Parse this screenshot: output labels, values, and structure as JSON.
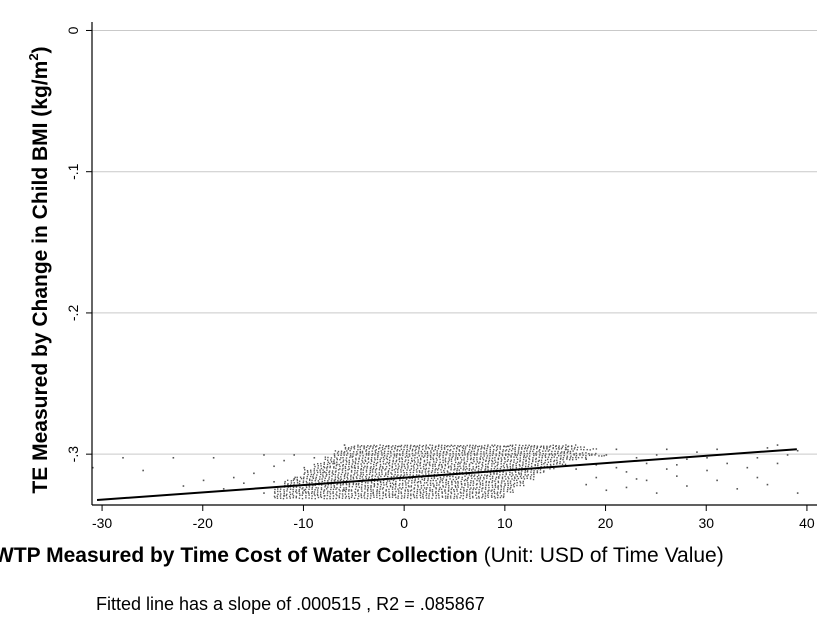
{
  "chart_data": {
    "type": "scatter",
    "title": "",
    "xlabel_bold": "WTP Measured by Time Cost of Water Collection",
    "xlabel_normal": " (Unit: USD of Time Value)",
    "ylabel_main": "TE Measured by Change in Child BMI (kg/m",
    "ylabel_sup": "2",
    "ylabel_end": ")",
    "xlim": [
      -31,
      41
    ],
    "ylim": [
      -0.336,
      0.006
    ],
    "xticks": [
      -30,
      -20,
      -10,
      0,
      10,
      20,
      30,
      40
    ],
    "xtick_labels": [
      "-30",
      "-20",
      "-10",
      "0",
      "10",
      "20",
      "30",
      "40"
    ],
    "yticks": [
      0,
      -0.1,
      -0.2,
      -0.3
    ],
    "ytick_labels": [
      "0",
      "-.1",
      "-.2",
      "-.3"
    ],
    "grid": "horizontal",
    "legend": "none",
    "point_color": "#555555",
    "line_color": "#000000",
    "fitted_line": {
      "x": [
        -30.5,
        39
      ],
      "y": [
        -0.3325,
        -0.2965
      ]
    },
    "scatter_bands": [
      {
        "y": -0.2935,
        "x_range": [
          -5,
          17
        ]
      },
      {
        "y": -0.2945,
        "x_range": [
          -6,
          18
        ]
      },
      {
        "y": -0.296,
        "x_range": [
          -6,
          19
        ]
      },
      {
        "y": -0.2975,
        "x_range": [
          -7,
          17
        ]
      },
      {
        "y": -0.299,
        "x_range": [
          -7,
          19
        ]
      },
      {
        "y": -0.3005,
        "x_range": [
          -7,
          20
        ]
      },
      {
        "y": -0.302,
        "x_range": [
          -8,
          18
        ]
      },
      {
        "y": -0.3035,
        "x_range": [
          -8,
          17
        ]
      },
      {
        "y": -0.305,
        "x_range": [
          -8,
          16
        ]
      },
      {
        "y": -0.3065,
        "x_range": [
          -9,
          16
        ]
      },
      {
        "y": -0.308,
        "x_range": [
          -9,
          15
        ]
      },
      {
        "y": -0.3095,
        "x_range": [
          -9,
          15
        ]
      },
      {
        "y": -0.311,
        "x_range": [
          -10,
          14
        ]
      },
      {
        "y": -0.3125,
        "x_range": [
          -10,
          14
        ]
      },
      {
        "y": -0.314,
        "x_range": [
          -10,
          13
        ]
      },
      {
        "y": -0.3155,
        "x_range": [
          -11,
          13
        ]
      },
      {
        "y": -0.317,
        "x_range": [
          -11,
          13
        ]
      },
      {
        "y": -0.3185,
        "x_range": [
          -12,
          12
        ]
      },
      {
        "y": -0.32,
        "x_range": [
          -12,
          12
        ]
      },
      {
        "y": -0.3215,
        "x_range": [
          -12,
          12
        ]
      },
      {
        "y": -0.323,
        "x_range": [
          -12,
          11
        ]
      },
      {
        "y": -0.3245,
        "x_range": [
          -13,
          11
        ]
      },
      {
        "y": -0.326,
        "x_range": [
          -13,
          11
        ]
      },
      {
        "y": -0.3275,
        "x_range": [
          -13,
          10
        ]
      },
      {
        "y": -0.329,
        "x_range": [
          -13,
          10
        ]
      },
      {
        "y": -0.3305,
        "x_range": [
          -13,
          10
        ]
      }
    ],
    "outlier_points": [
      [
        -31,
        -0.309
      ],
      [
        -28,
        -0.302
      ],
      [
        -26,
        -0.311
      ],
      [
        -23,
        -0.302
      ],
      [
        -22,
        -0.322
      ],
      [
        -20,
        -0.318
      ],
      [
        -19,
        -0.302
      ],
      [
        -18,
        -0.324
      ],
      [
        -17,
        -0.316
      ],
      [
        -16,
        -0.32
      ],
      [
        -15,
        -0.313
      ],
      [
        -14,
        -0.3
      ],
      [
        -14,
        -0.327
      ],
      [
        -13,
        -0.308
      ],
      [
        -13,
        -0.319
      ],
      [
        -12,
        -0.304
      ],
      [
        -12,
        -0.329
      ],
      [
        -11,
        -0.317
      ],
      [
        -11,
        -0.3
      ],
      [
        -10,
        -0.309
      ],
      [
        -10,
        -0.325
      ],
      [
        -9,
        -0.302
      ],
      [
        -9,
        -0.321
      ],
      [
        -8,
        -0.312
      ],
      [
        -8,
        -0.329
      ],
      [
        -7,
        -0.306
      ],
      [
        -7,
        -0.318
      ],
      [
        -6,
        -0.293
      ],
      [
        -6,
        -0.325
      ],
      [
        -5,
        -0.309
      ],
      [
        21,
        -0.296
      ],
      [
        22,
        -0.312
      ],
      [
        22,
        -0.323
      ],
      [
        23,
        -0.302
      ],
      [
        24,
        -0.318
      ],
      [
        25,
        -0.3
      ],
      [
        25,
        -0.327
      ],
      [
        26,
        -0.31
      ],
      [
        26,
        -0.296
      ],
      [
        27,
        -0.315
      ],
      [
        28,
        -0.303
      ],
      [
        28,
        -0.322
      ],
      [
        29,
        -0.298
      ],
      [
        30,
        -0.311
      ],
      [
        30,
        -0.302
      ],
      [
        31,
        -0.296
      ],
      [
        31,
        -0.318
      ],
      [
        32,
        -0.306
      ],
      [
        33,
        -0.299
      ],
      [
        33,
        -0.324
      ],
      [
        34,
        -0.309
      ],
      [
        35,
        -0.302
      ],
      [
        35,
        -0.316
      ],
      [
        36,
        -0.295
      ],
      [
        36,
        -0.321
      ],
      [
        37,
        -0.306
      ],
      [
        37,
        -0.293
      ],
      [
        38,
        -0.3
      ],
      [
        39,
        -0.297
      ],
      [
        39,
        -0.327
      ],
      [
        16,
        -0.296
      ],
      [
        17,
        -0.31
      ],
      [
        18,
        -0.303
      ],
      [
        18,
        -0.321
      ],
      [
        19,
        -0.307
      ],
      [
        20,
        -0.3
      ],
      [
        19,
        -0.316
      ],
      [
        20,
        -0.325
      ],
      [
        21,
        -0.309
      ],
      [
        23,
        -0.317
      ],
      [
        24,
        -0.306
      ],
      [
        27,
        -0.307
      ]
    ]
  },
  "footer": {
    "note": "Fitted line has a slope of .000515 , R2 = .085867"
  }
}
